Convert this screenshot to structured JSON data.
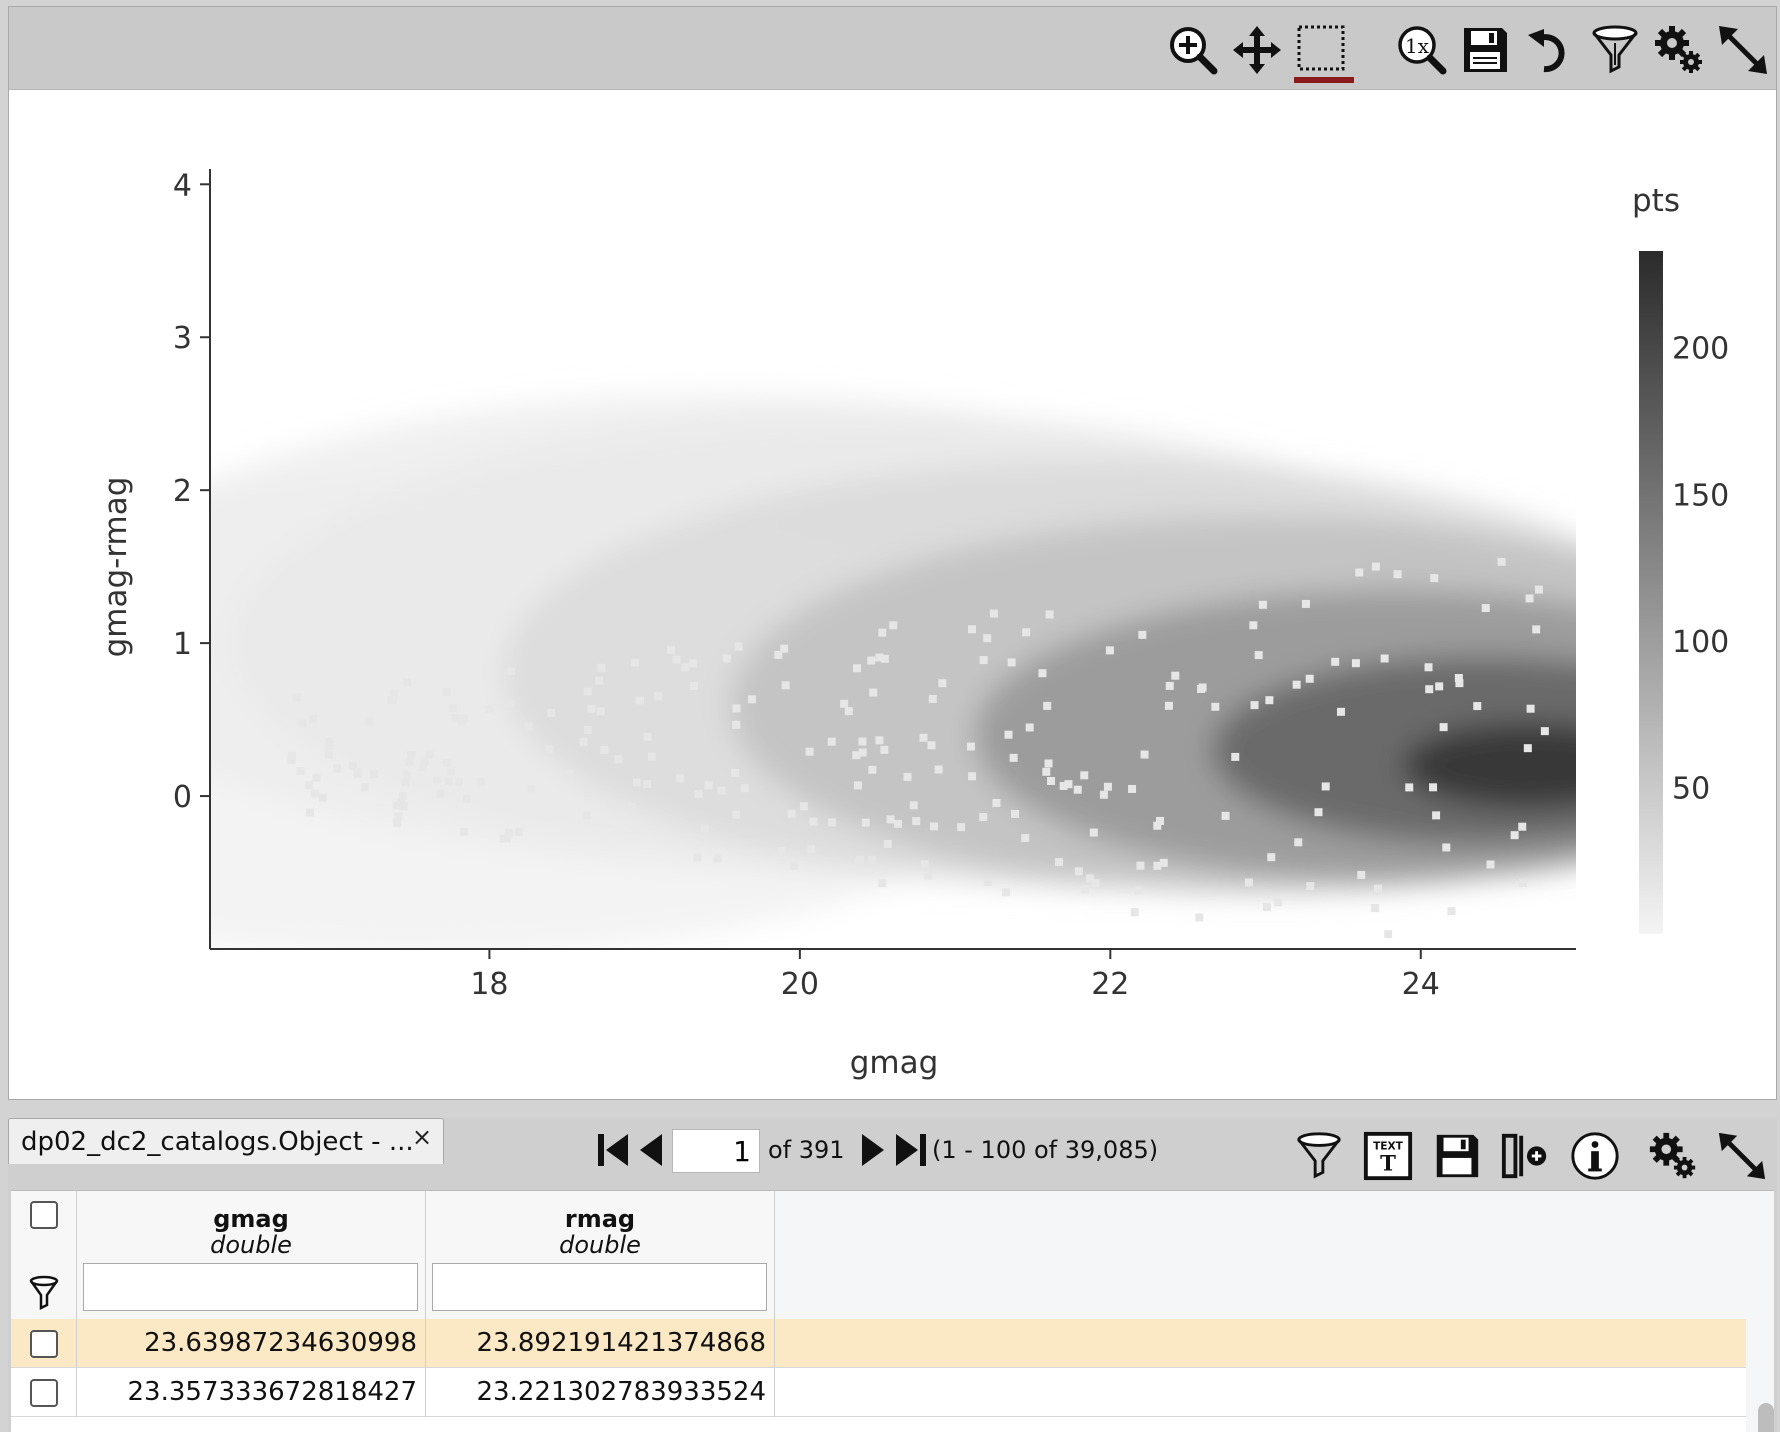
{
  "chart_toolbar": {
    "icons": [
      "zoom-in-icon",
      "pan-icon",
      "select-box-icon",
      "zoom-1x-icon",
      "save-icon",
      "restore-icon",
      "filter-icon",
      "settings-icon",
      "expand-icon"
    ],
    "zoom_1x_label": "1x",
    "active_icon": "select-box-icon",
    "active_color": "#8b1a1a"
  },
  "chart_data": {
    "type": "heatmap",
    "xlabel": "gmag",
    "ylabel": "gmag-rmag",
    "xlim": [
      16.2,
      25
    ],
    "ylim": [
      -1,
      4.1
    ],
    "xticks": [
      18,
      20,
      22,
      24
    ],
    "yticks": [
      0,
      1,
      2,
      3,
      4
    ],
    "colorbar": {
      "title": "pts",
      "ticks": [
        50,
        100,
        150,
        200
      ],
      "range": [
        0,
        233
      ],
      "colors": [
        "#f4f4f4",
        "#2b2b2b"
      ]
    },
    "density_regions": [
      {
        "gmag": 24.7,
        "color_index": 0.2,
        "pts": 230
      },
      {
        "gmag": 24.4,
        "color_index": 0.3,
        "pts": 170
      },
      {
        "gmag": 23.8,
        "color_index": 0.4,
        "pts": 110
      },
      {
        "gmag": 23.0,
        "color_index": 0.6,
        "pts": 60
      },
      {
        "gmag": 22.0,
        "color_index": 0.8,
        "pts": 30
      },
      {
        "gmag": 20.5,
        "color_index": 1.0,
        "pts": 12
      },
      {
        "gmag": 19.5,
        "color_index": 1.1,
        "pts": 8
      },
      {
        "gmag": 17.5,
        "color_index": 0.5,
        "pts": 3
      }
    ]
  },
  "table": {
    "tab_title": "dp02_dc2_catalogs.Object - ...",
    "close_label": "×",
    "page_current": "1",
    "page_of": "of 391",
    "range_text": "(1 - 100 of 39,085)",
    "text_icon_label": "TEXT",
    "text_icon_glyph": "T",
    "columns": [
      {
        "name": "gmag",
        "type": "double"
      },
      {
        "name": "rmag",
        "type": "double"
      }
    ],
    "rows": [
      {
        "gmag": "23.63987234630998",
        "rmag": "23.892191421374868",
        "selected": true
      },
      {
        "gmag": "23.357333672818427",
        "rmag": "23.221302783933524",
        "selected": false
      }
    ]
  }
}
